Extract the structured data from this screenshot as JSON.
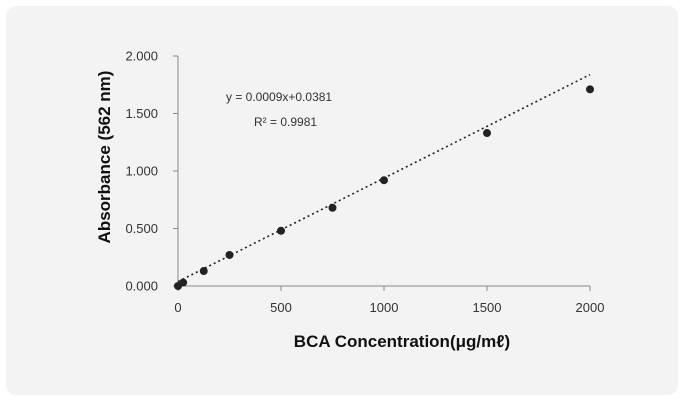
{
  "chart_data": {
    "type": "scatter",
    "title": "",
    "xlabel": "BCA Concentration(μg/mℓ)",
    "ylabel": "Absorbance (562 nm)",
    "xlim": [
      0,
      2000
    ],
    "ylim": [
      0,
      2
    ],
    "x_ticks": [
      "0",
      "500",
      "1000",
      "1500",
      "2000"
    ],
    "y_ticks": [
      "0.000",
      "0.500",
      "1.000",
      "1.500",
      "2.000"
    ],
    "grid": false,
    "legend": "none",
    "series": [
      {
        "points": [
          {
            "x": 0,
            "y": 0.0
          },
          {
            "x": 25,
            "y": 0.03
          },
          {
            "x": 125,
            "y": 0.13
          },
          {
            "x": 250,
            "y": 0.27
          },
          {
            "x": 500,
            "y": 0.48
          },
          {
            "x": 750,
            "y": 0.68
          },
          {
            "x": 1000,
            "y": 0.92
          },
          {
            "x": 1500,
            "y": 1.33
          },
          {
            "x": 2000,
            "y": 1.71
          }
        ],
        "color": "#222222"
      }
    ],
    "trendline": {
      "style": "dotted",
      "slope": 0.0009,
      "intercept": 0.0381,
      "equation": "y = 0.0009x+0.0381",
      "r_squared": "R² = 0.9981"
    }
  }
}
